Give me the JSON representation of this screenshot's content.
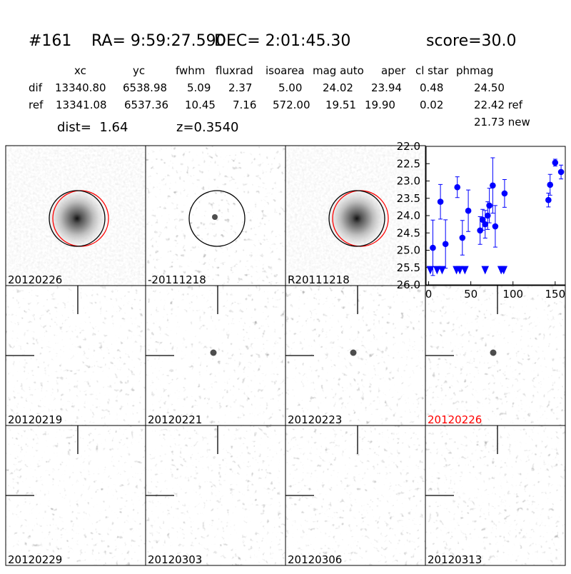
{
  "header": {
    "id": "#161",
    "ra": "RA= 9:59:27.590",
    "dec": "DEC= 2:01:45.30",
    "score": "score=30.0"
  },
  "table": {
    "columns": [
      "xc",
      "yc",
      "fwhm",
      "fluxrad",
      "isoarea",
      "mag auto",
      "aper",
      "cl star",
      "phmag"
    ],
    "rows": [
      [
        "dif",
        "13340.80",
        "6538.98",
        "5.09",
        "2.37",
        "5.00",
        "24.02",
        "23.94",
        "0.48",
        "24.50"
      ],
      [
        "ref",
        "13341.08",
        "6537.36",
        "10.45",
        "7.16",
        "572.00",
        "19.51",
        "19.90",
        "0.02",
        "22.42 ref"
      ]
    ],
    "extra": "21.73 new"
  },
  "dist": "dist=  1.64",
  "z": "z=0.3540",
  "stamps": [
    {
      "label": "20120226"
    },
    {
      "label": "-20111218"
    },
    {
      "label": "R20111218"
    },
    {
      "label": "20120219"
    },
    {
      "label": "20120221"
    },
    {
      "label": "20120223"
    },
    {
      "label": "20120226",
      "color": "#ff0000"
    },
    {
      "label": "20120229"
    },
    {
      "label": "20120303"
    },
    {
      "label": "20120306"
    },
    {
      "label": "20120313"
    }
  ],
  "chart_data": {
    "type": "scatter",
    "xlim": [
      -3,
      162
    ],
    "ylim": [
      26.0,
      22.0
    ],
    "xticks": [
      0,
      50,
      100,
      150
    ],
    "yticks": [
      {
        "value": 22.0,
        "label": "22.0"
      },
      {
        "value": 22.5,
        "label": "22.5"
      },
      {
        "value": 23.0,
        "label": "23.0"
      },
      {
        "value": 23.5,
        "label": "23.5"
      },
      {
        "value": 24.0,
        "label": "24.0"
      },
      {
        "value": 24.5,
        "label": "24.5"
      },
      {
        "value": 25.0,
        "label": "25.0"
      },
      {
        "value": 25.5,
        "label": "25.5"
      },
      {
        "value": 26.0,
        "label": "26.0"
      }
    ],
    "series": [
      {
        "color": "#0000ff",
        "marker": "circle",
        "x": [
          5,
          14,
          20,
          34,
          40,
          47,
          61,
          64,
          67,
          70,
          72,
          76,
          79,
          90,
          142,
          144,
          150,
          157
        ],
        "values": [
          24.93,
          23.6,
          24.82,
          23.18,
          24.64,
          23.86,
          24.43,
          24.12,
          24.25,
          24.0,
          23.71,
          23.13,
          24.31,
          23.36,
          23.55,
          23.11,
          22.47,
          22.74
        ],
        "errors": [
          0.8,
          0.5,
          0.7,
          0.3,
          0.5,
          0.6,
          0.4,
          0.3,
          0.4,
          0.4,
          0.5,
          0.8,
          0.6,
          0.4,
          0.2,
          0.3,
          0.1,
          0.2
        ]
      },
      {
        "color": "#0000ff",
        "marker": "triangle-down",
        "x": [
          2,
          10,
          16,
          33,
          37,
          43,
          67,
          86,
          89
        ],
        "values": [
          25.55,
          25.55,
          25.55,
          25.55,
          25.55,
          25.55,
          25.55,
          25.55,
          25.55
        ]
      }
    ]
  }
}
